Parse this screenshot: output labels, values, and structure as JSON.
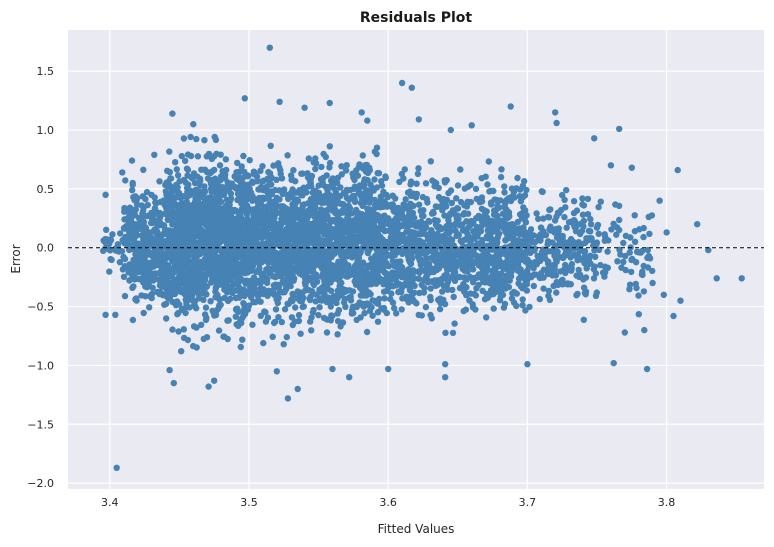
{
  "chart_data": {
    "type": "scatter",
    "title": "Residuals Plot",
    "xlabel": "Fitted Values",
    "ylabel": "Error",
    "xlim": [
      3.37,
      3.87
    ],
    "ylim": [
      -2.05,
      1.85
    ],
    "x_ticks": [
      3.4,
      3.5,
      3.6,
      3.7,
      3.8
    ],
    "x_tick_labels": [
      "3.4",
      "3.5",
      "3.6",
      "3.7",
      "3.8"
    ],
    "y_ticks": [
      -2.0,
      -1.5,
      -1.0,
      -0.5,
      0.0,
      0.5,
      1.0,
      1.5
    ],
    "y_tick_labels": [
      "−2.0",
      "−1.5",
      "−1.0",
      "−0.5",
      "0.0",
      "0.5",
      "1.0",
      "1.5"
    ],
    "grid": true,
    "reference_line_y": 0.0,
    "point_color": "#4682b4",
    "background_color": "#eaeaf2",
    "density_bands": [
      {
        "x_start": 3.395,
        "x_end": 3.41,
        "y_low": -0.45,
        "y_high": 0.35,
        "count": 30
      },
      {
        "x_start": 3.41,
        "x_end": 3.44,
        "y_low": -0.7,
        "y_high": 0.75,
        "count": 350
      },
      {
        "x_start": 3.44,
        "x_end": 3.5,
        "y_low": -0.9,
        "y_high": 1.0,
        "count": 1400
      },
      {
        "x_start": 3.5,
        "x_end": 3.6,
        "y_low": -0.85,
        "y_high": 0.95,
        "count": 1700
      },
      {
        "x_start": 3.6,
        "x_end": 3.7,
        "y_low": -0.75,
        "y_high": 0.75,
        "count": 1100
      },
      {
        "x_start": 3.7,
        "x_end": 3.75,
        "y_low": -0.65,
        "y_high": 0.6,
        "count": 260
      },
      {
        "x_start": 3.75,
        "x_end": 3.79,
        "y_low": -0.6,
        "y_high": 0.55,
        "count": 70
      }
    ],
    "outliers": [
      {
        "x": 3.405,
        "y": -1.87
      },
      {
        "x": 3.515,
        "y": 1.7
      },
      {
        "x": 3.61,
        "y": 1.4
      },
      {
        "x": 3.617,
        "y": 1.36
      },
      {
        "x": 3.497,
        "y": 1.27
      },
      {
        "x": 3.522,
        "y": 1.24
      },
      {
        "x": 3.558,
        "y": 1.23
      },
      {
        "x": 3.688,
        "y": 1.2
      },
      {
        "x": 3.54,
        "y": 1.19
      },
      {
        "x": 3.445,
        "y": 1.14
      },
      {
        "x": 3.622,
        "y": 1.09
      },
      {
        "x": 3.72,
        "y": 1.15
      },
      {
        "x": 3.721,
        "y": 1.06
      },
      {
        "x": 3.766,
        "y": 1.01
      },
      {
        "x": 3.748,
        "y": 0.93
      },
      {
        "x": 3.808,
        "y": 0.66
      },
      {
        "x": 3.822,
        "y": 0.2
      },
      {
        "x": 3.83,
        "y": -0.02
      },
      {
        "x": 3.836,
        "y": -0.26
      },
      {
        "x": 3.854,
        "y": -0.26
      },
      {
        "x": 3.81,
        "y": -0.45
      },
      {
        "x": 3.805,
        "y": -0.58
      },
      {
        "x": 3.798,
        "y": -0.4
      },
      {
        "x": 3.79,
        "y": -0.3
      },
      {
        "x": 3.795,
        "y": 0.4
      },
      {
        "x": 3.8,
        "y": 0.13
      },
      {
        "x": 3.786,
        "y": -1.03
      },
      {
        "x": 3.762,
        "y": -0.98
      },
      {
        "x": 3.7,
        "y": -0.99
      },
      {
        "x": 3.641,
        "y": -0.99
      },
      {
        "x": 3.641,
        "y": -1.1
      },
      {
        "x": 3.572,
        "y": -1.1
      },
      {
        "x": 3.528,
        "y": -1.28
      },
      {
        "x": 3.535,
        "y": -1.2
      },
      {
        "x": 3.471,
        "y": -1.18
      },
      {
        "x": 3.475,
        "y": -1.13
      },
      {
        "x": 3.446,
        "y": -1.15
      },
      {
        "x": 3.443,
        "y": -1.04
      },
      {
        "x": 3.397,
        "y": -0.57
      },
      {
        "x": 3.404,
        "y": -0.57
      },
      {
        "x": 3.397,
        "y": 0.45
      },
      {
        "x": 3.409,
        "y": 0.64
      },
      {
        "x": 3.432,
        "y": 0.79
      },
      {
        "x": 3.416,
        "y": 0.74
      },
      {
        "x": 3.46,
        "y": 1.05
      },
      {
        "x": 3.581,
        "y": 1.15
      },
      {
        "x": 3.585,
        "y": 1.08
      },
      {
        "x": 3.66,
        "y": 1.04
      },
      {
        "x": 3.645,
        "y": 1.0
      },
      {
        "x": 3.6,
        "y": -1.03
      },
      {
        "x": 3.52,
        "y": -1.05
      },
      {
        "x": 3.56,
        "y": -1.03
      },
      {
        "x": 3.775,
        "y": 0.68
      },
      {
        "x": 3.76,
        "y": 0.7
      },
      {
        "x": 3.784,
        "y": -0.7
      },
      {
        "x": 3.77,
        "y": -0.72
      }
    ]
  }
}
